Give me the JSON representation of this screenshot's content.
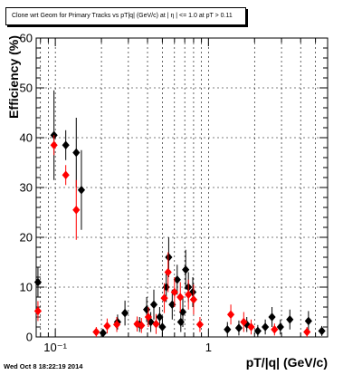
{
  "chart_data": {
    "type": "scatter",
    "title": "Clone wrt Geom for Primary Tracks vs pT|q| (GeV/c) at |  η | <= 1.0 at pT > 0.11",
    "xlabel": "pT/|q| (GeV/c)",
    "ylabel": "Efficiency (%)",
    "xscale": "log",
    "xlim": [
      0.075,
      6.0
    ],
    "ylim": [
      0,
      60
    ],
    "yticks": [
      0,
      10,
      20,
      30,
      40,
      50,
      60
    ],
    "xtick_labels": [
      "10⁻¹",
      "1"
    ],
    "grid": true,
    "series": [
      {
        "marker": "diamond",
        "color": "#000000",
        "points": [
          {
            "x": 0.077,
            "y": 11,
            "err": 3
          },
          {
            "x": 0.098,
            "y": 40.5,
            "err": 9
          },
          {
            "x": 0.117,
            "y": 38.5,
            "err": 3
          },
          {
            "x": 0.137,
            "y": 37,
            "err": 7
          },
          {
            "x": 0.148,
            "y": 29.5,
            "err": 8
          },
          {
            "x": 0.205,
            "y": 0.8,
            "err": 0.8
          },
          {
            "x": 0.255,
            "y": 3,
            "err": 1.5
          },
          {
            "x": 0.285,
            "y": 4.8,
            "err": 2.5
          },
          {
            "x": 0.355,
            "y": 2.5,
            "err": 1.5
          },
          {
            "x": 0.395,
            "y": 5.5,
            "err": 2.5
          },
          {
            "x": 0.42,
            "y": 3,
            "err": 2
          },
          {
            "x": 0.44,
            "y": 6.5,
            "err": 3
          },
          {
            "x": 0.48,
            "y": 4,
            "err": 2
          },
          {
            "x": 0.5,
            "y": 2,
            "err": 2
          },
          {
            "x": 0.53,
            "y": 10,
            "err": 3
          },
          {
            "x": 0.55,
            "y": 16,
            "err": 4
          },
          {
            "x": 0.58,
            "y": 6.5,
            "err": 3
          },
          {
            "x": 0.625,
            "y": 11.5,
            "err": 3
          },
          {
            "x": 0.66,
            "y": 3,
            "err": 2
          },
          {
            "x": 0.68,
            "y": 5,
            "err": 3
          },
          {
            "x": 0.71,
            "y": 13.5,
            "err": 4
          },
          {
            "x": 0.74,
            "y": 10,
            "err": 3
          },
          {
            "x": 0.79,
            "y": 9,
            "err": 3
          },
          {
            "x": 1.33,
            "y": 1.5,
            "err": 1.5
          },
          {
            "x": 1.58,
            "y": 1.8,
            "err": 1.5
          },
          {
            "x": 1.78,
            "y": 2.5,
            "err": 1.5
          },
          {
            "x": 2.1,
            "y": 1.2,
            "err": 1.2
          },
          {
            "x": 2.35,
            "y": 2,
            "err": 1.5
          },
          {
            "x": 2.6,
            "y": 4,
            "err": 2
          },
          {
            "x": 2.95,
            "y": 2,
            "err": 1.5
          },
          {
            "x": 3.4,
            "y": 3.5,
            "err": 2
          },
          {
            "x": 4.5,
            "y": 3.2,
            "err": 2
          },
          {
            "x": 5.5,
            "y": 1.2,
            "err": 1
          }
        ]
      },
      {
        "marker": "diamond",
        "color": "#ff0000",
        "points": [
          {
            "x": 0.077,
            "y": 5.2,
            "err": 2
          },
          {
            "x": 0.098,
            "y": 38.5,
            "err": 2
          },
          {
            "x": 0.117,
            "y": 32.5,
            "err": 2
          },
          {
            "x": 0.137,
            "y": 25.5,
            "err": 6
          },
          {
            "x": 0.185,
            "y": 1,
            "err": 1
          },
          {
            "x": 0.218,
            "y": 2.2,
            "err": 1.5
          },
          {
            "x": 0.252,
            "y": 2.5,
            "err": 1.5
          },
          {
            "x": 0.342,
            "y": 2.6,
            "err": 1.5
          },
          {
            "x": 0.365,
            "y": 2.3,
            "err": 1.5
          },
          {
            "x": 0.405,
            "y": 4,
            "err": 2
          },
          {
            "x": 0.455,
            "y": 2.6,
            "err": 2
          },
          {
            "x": 0.515,
            "y": 7.8,
            "err": 3
          },
          {
            "x": 0.545,
            "y": 13,
            "err": 4
          },
          {
            "x": 0.6,
            "y": 9,
            "err": 3
          },
          {
            "x": 0.655,
            "y": 8,
            "err": 3
          },
          {
            "x": 0.74,
            "y": 8.5,
            "err": 3
          },
          {
            "x": 0.8,
            "y": 7.5,
            "err": 3
          },
          {
            "x": 0.88,
            "y": 2.5,
            "err": 1.5
          },
          {
            "x": 1.4,
            "y": 4.5,
            "err": 2
          },
          {
            "x": 1.7,
            "y": 3,
            "err": 2
          },
          {
            "x": 1.9,
            "y": 2,
            "err": 1.5
          },
          {
            "x": 2.7,
            "y": 1.5,
            "err": 1.2
          },
          {
            "x": 4.4,
            "y": 1,
            "err": 1
          }
        ]
      }
    ]
  },
  "timestamp": "Wed Oct  8 18:22:19 2014"
}
